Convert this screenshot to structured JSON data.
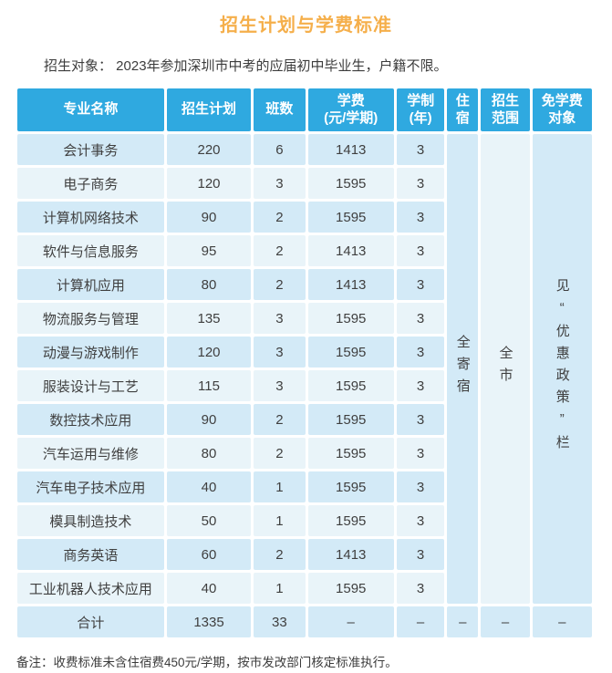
{
  "page": {
    "title": "招生计划与学费标准",
    "subtitle": "招生对象： 2023年参加深圳市中考的应届初中毕业生，户籍不限。",
    "note": "备注：收费标准未含住宿费450元/学期，按市发改部门核定标准执行。"
  },
  "colors": {
    "title": "#F5AF4B",
    "header_bg": "#2FA9E0",
    "row_odd": "#D3EAF7",
    "row_even": "#E9F4F9",
    "text": "#3F3F3F"
  },
  "table": {
    "headers": [
      [
        "专业名称"
      ],
      [
        "招生计划"
      ],
      [
        "班数"
      ],
      [
        "学费",
        "(元/学期)"
      ],
      [
        "学制",
        "(年)"
      ],
      [
        "住",
        "宿"
      ],
      [
        "招生",
        "范围"
      ],
      [
        "免学费",
        "对象"
      ]
    ],
    "rows": [
      {
        "major": "会计事务",
        "plan": "220",
        "classes": "6",
        "tuition": "1413",
        "years": "3"
      },
      {
        "major": "电子商务",
        "plan": "120",
        "classes": "3",
        "tuition": "1595",
        "years": "3"
      },
      {
        "major": "计算机网络技术",
        "plan": "90",
        "classes": "2",
        "tuition": "1595",
        "years": "3"
      },
      {
        "major": "软件与信息服务",
        "plan": "95",
        "classes": "2",
        "tuition": "1413",
        "years": "3"
      },
      {
        "major": "计算机应用",
        "plan": "80",
        "classes": "2",
        "tuition": "1413",
        "years": "3"
      },
      {
        "major": "物流服务与管理",
        "plan": "135",
        "classes": "3",
        "tuition": "1595",
        "years": "3"
      },
      {
        "major": "动漫与游戏制作",
        "plan": "120",
        "classes": "3",
        "tuition": "1595",
        "years": "3"
      },
      {
        "major": "服装设计与工艺",
        "plan": "115",
        "classes": "3",
        "tuition": "1595",
        "years": "3"
      },
      {
        "major": "数控技术应用",
        "plan": "90",
        "classes": "2",
        "tuition": "1595",
        "years": "3"
      },
      {
        "major": "汽车运用与维修",
        "plan": "80",
        "classes": "2",
        "tuition": "1595",
        "years": "3"
      },
      {
        "major": "汽车电子技术应用",
        "plan": "40",
        "classes": "1",
        "tuition": "1595",
        "years": "3"
      },
      {
        "major": "模具制造技术",
        "plan": "50",
        "classes": "1",
        "tuition": "1595",
        "years": "3"
      },
      {
        "major": "商务英语",
        "plan": "60",
        "classes": "2",
        "tuition": "1413",
        "years": "3"
      },
      {
        "major": "工业机器人技术应用",
        "plan": "40",
        "classes": "1",
        "tuition": "1595",
        "years": "3"
      }
    ],
    "merged": {
      "accommodation": "全寄宿",
      "scope": "全市",
      "tuition_free": "见“优惠政策”栏"
    },
    "total": {
      "major": "合计",
      "plan": "1335",
      "classes": "33",
      "tuition": "–",
      "years": "–",
      "accommodation": "–",
      "scope": "–",
      "tuition_free": "–"
    }
  }
}
